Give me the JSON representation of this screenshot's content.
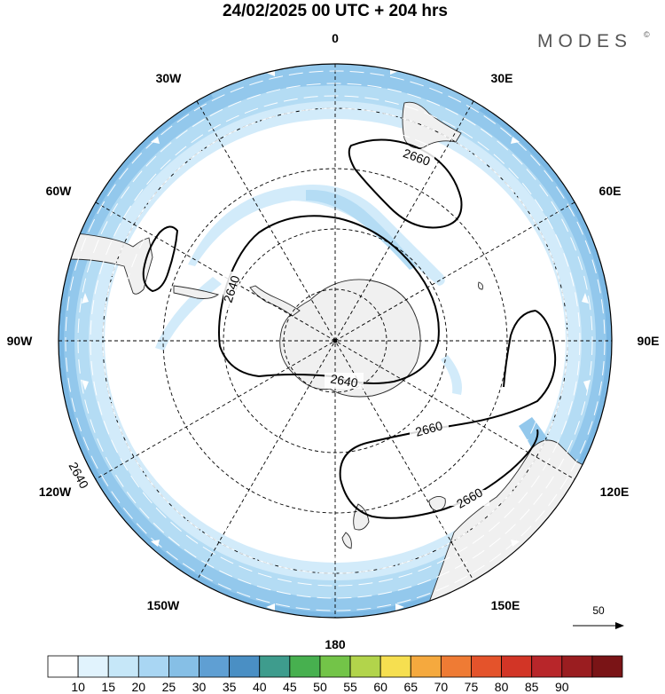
{
  "title": "24/02/2025  00 UTC  + 204 hrs",
  "brand": "MODES",
  "brand_mark": "©",
  "longitude_labels": {
    "n": "0",
    "ne30": "30E",
    "ne60": "60E",
    "e90": "90E",
    "se120": "120E",
    "se150": "150E",
    "s180": "180",
    "sw150": "150W",
    "sw120": "120W",
    "w90": "90W",
    "nw60": "60W",
    "nw30": "30W"
  },
  "contour_labels": [
    "2660",
    "2640",
    "2640",
    "2660",
    "2660",
    "2640"
  ],
  "reference_vector": {
    "label": "50"
  },
  "colorbar": {
    "ticks": [
      "10",
      "15",
      "20",
      "25",
      "30",
      "35",
      "40",
      "45",
      "50",
      "55",
      "60",
      "65",
      "70",
      "75",
      "80",
      "85",
      "90"
    ],
    "colors": [
      "#ffffff",
      "#e1f3fd",
      "#c6e7f8",
      "#a9d6f3",
      "#86bfe6",
      "#5f9fd3",
      "#4a8fc4",
      "#3e9c8d",
      "#47b04f",
      "#73c448",
      "#b2d44b",
      "#f6df50",
      "#f5a93e",
      "#ef7b34",
      "#e4532b",
      "#d23526",
      "#b8262a",
      "#9a1d20",
      "#7a1416"
    ]
  },
  "colors": {
    "wind_light": "#d2ebfa",
    "wind_mid": "#b4dcf4",
    "wind_strong": "#93c8ec",
    "wind_max": "#7bb8e4",
    "land": "#f0f0f0",
    "contour": "#000000"
  }
}
